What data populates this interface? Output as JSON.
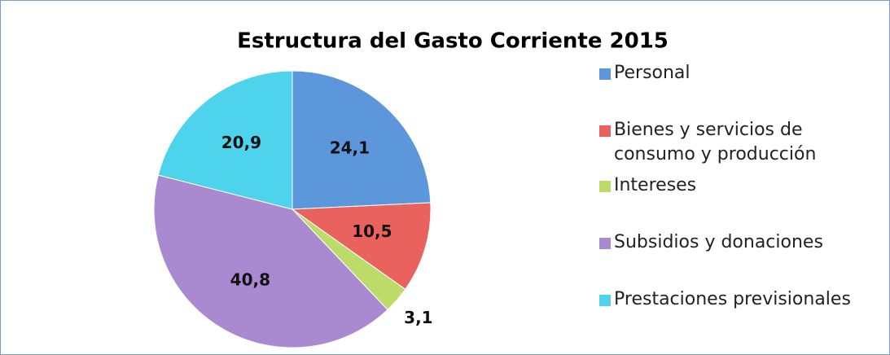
{
  "chart_data": {
    "type": "pie",
    "title": "Estructura del Gasto Corriente 2015",
    "categories": [
      "Personal",
      "Bienes y servicios de consumo y producción",
      "Intereses",
      "Subsidios y donaciones",
      "Prestaciones previsionales"
    ],
    "values": [
      24.1,
      10.5,
      3.1,
      40.8,
      20.9
    ],
    "value_labels": [
      "24,1",
      "10,5",
      "3,1",
      "40,8",
      "20,9"
    ],
    "colors": [
      "#5d97db",
      "#e9625d",
      "#bcdc6a",
      "#a98ad0",
      "#4ed3ec"
    ],
    "legend": "right"
  }
}
